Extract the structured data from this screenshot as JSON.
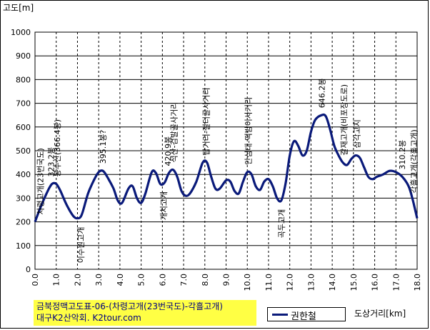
{
  "chart_data": {
    "type": "line",
    "ylabel": "고도[m]",
    "xlabel": "도상거리[km]",
    "ylim": [
      0,
      1000
    ],
    "xlim": [
      0,
      18
    ],
    "grid": true,
    "yticks": [
      0,
      100,
      200,
      300,
      400,
      500,
      600,
      700,
      800,
      900,
      1000
    ],
    "xticks": [
      "0.0",
      "1.0",
      "2.0",
      "3.0",
      "4.0",
      "5.0",
      "6.0",
      "7.0",
      "8.0",
      "9.0",
      "10.0",
      "11.0",
      "12.0",
      "13.0",
      "14.0",
      "15.0",
      "16.0",
      "17.0",
      "18.0"
    ],
    "line_color": "#0a1a7a",
    "legend_position": "bottom",
    "series": [
      {
        "name": "권한철",
        "points": [
          [
            0.0,
            200
          ],
          [
            0.3,
            270
          ],
          [
            0.6,
            330
          ],
          [
            0.8,
            360
          ],
          [
            1.0,
            360
          ],
          [
            1.2,
            330
          ],
          [
            1.5,
            270
          ],
          [
            1.8,
            225
          ],
          [
            2.0,
            215
          ],
          [
            2.2,
            230
          ],
          [
            2.5,
            320
          ],
          [
            2.8,
            380
          ],
          [
            3.0,
            410
          ],
          [
            3.2,
            415
          ],
          [
            3.4,
            390
          ],
          [
            3.7,
            340
          ],
          [
            3.9,
            290
          ],
          [
            4.1,
            280
          ],
          [
            4.4,
            340
          ],
          [
            4.6,
            350
          ],
          [
            4.8,
            300
          ],
          [
            5.0,
            280
          ],
          [
            5.2,
            320
          ],
          [
            5.5,
            410
          ],
          [
            5.7,
            405
          ],
          [
            5.9,
            360
          ],
          [
            6.1,
            365
          ],
          [
            6.3,
            405
          ],
          [
            6.5,
            420
          ],
          [
            6.7,
            390
          ],
          [
            6.9,
            330
          ],
          [
            7.1,
            310
          ],
          [
            7.3,
            320
          ],
          [
            7.6,
            370
          ],
          [
            7.9,
            450
          ],
          [
            8.1,
            450
          ],
          [
            8.3,
            390
          ],
          [
            8.5,
            340
          ],
          [
            8.7,
            340
          ],
          [
            9.0,
            375
          ],
          [
            9.2,
            370
          ],
          [
            9.4,
            330
          ],
          [
            9.6,
            320
          ],
          [
            9.8,
            370
          ],
          [
            10.0,
            410
          ],
          [
            10.2,
            400
          ],
          [
            10.4,
            350
          ],
          [
            10.6,
            335
          ],
          [
            10.8,
            370
          ],
          [
            11.0,
            380
          ],
          [
            11.2,
            350
          ],
          [
            11.4,
            300
          ],
          [
            11.6,
            290
          ],
          [
            11.8,
            360
          ],
          [
            12.0,
            480
          ],
          [
            12.2,
            540
          ],
          [
            12.4,
            520
          ],
          [
            12.6,
            480
          ],
          [
            12.8,
            500
          ],
          [
            13.0,
            580
          ],
          [
            13.2,
            630
          ],
          [
            13.5,
            650
          ],
          [
            13.7,
            645
          ],
          [
            13.9,
            590
          ],
          [
            14.1,
            520
          ],
          [
            14.3,
            480
          ],
          [
            14.5,
            450
          ],
          [
            14.7,
            440
          ],
          [
            14.9,
            465
          ],
          [
            15.1,
            480
          ],
          [
            15.3,
            470
          ],
          [
            15.5,
            430
          ],
          [
            15.7,
            390
          ],
          [
            15.9,
            380
          ],
          [
            16.1,
            390
          ],
          [
            16.4,
            400
          ],
          [
            16.7,
            415
          ],
          [
            17.0,
            410
          ],
          [
            17.3,
            390
          ],
          [
            17.6,
            350
          ],
          [
            17.8,
            290
          ],
          [
            18.0,
            215
          ]
        ]
      }
    ],
    "annotations": [
      {
        "x": 0.25,
        "y": 200,
        "text": "차령고개(23번국도)"
      },
      {
        "x": 0.75,
        "y": 360,
        "text": "323.2봉"
      },
      {
        "x": 1.05,
        "y": 360,
        "text": "봉수산(366.4봉)"
      },
      {
        "x": 2.15,
        "y": 215,
        "text": "이수원고개",
        "side": "below"
      },
      {
        "x": 3.2,
        "y": 415,
        "text": "395.1봉?"
      },
      {
        "x": 6.05,
        "y": 365,
        "text": "개치고개",
        "side": "below"
      },
      {
        "x": 6.25,
        "y": 405,
        "text": "420.9봉"
      },
      {
        "x": 6.55,
        "y": 420,
        "text": "석산-검발골사거리"
      },
      {
        "x": 8.05,
        "y": 450,
        "text": "탑거리-절터골사거리"
      },
      {
        "x": 10.05,
        "y": 410,
        "text": "안심대-떡밤이사거리"
      },
      {
        "x": 11.6,
        "y": 290,
        "text": "곡두고개",
        "side": "below"
      },
      {
        "x": 13.5,
        "y": 650,
        "text": "646.2봉"
      },
      {
        "x": 14.55,
        "y": 450,
        "text": "갈재고개(비포장도로)"
      },
      {
        "x": 15.15,
        "y": 480,
        "text": "삼각고지"
      },
      {
        "x": 17.3,
        "y": 390,
        "text": "310.2봉"
      },
      {
        "x": 17.85,
        "y": 290,
        "text": "각흘고개(각흘고개)"
      }
    ]
  },
  "caption": {
    "line1": "금북정맥고도표-06-(차령고개(23번국도)-각흘고개)",
    "line2": "대구K2산악회. K2tour.com"
  }
}
